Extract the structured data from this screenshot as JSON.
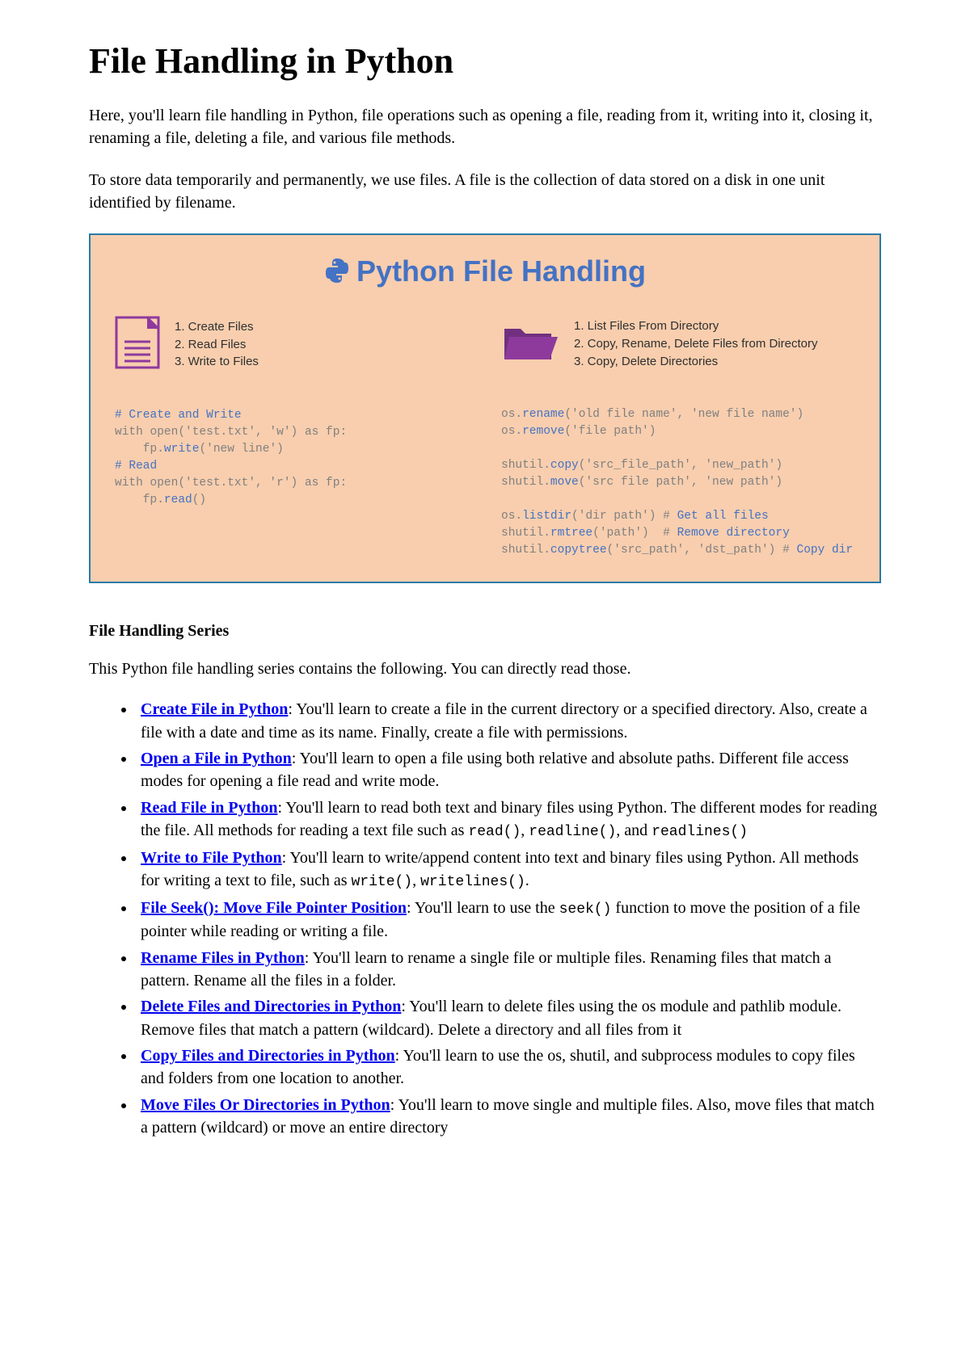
{
  "title": "File Handling in Python",
  "intro": [
    "Here, you'll learn file handling in Python, file operations such as opening a file, reading from it, writing into it, closing it, renaming a file, deleting a file, and various file methods.",
    "To store data temporarily and permanently, we use files. A file is the collection of data stored on a disk in one unit identified by filename."
  ],
  "infographic": {
    "title": "Python File Handling",
    "border_color": "#2a7aa8",
    "background_color": "#f8ceae",
    "title_color": "#4472c4",
    "icon_color": "#8e3a9d",
    "code_gray": "#808080",
    "code_highlight": "#4472c4",
    "left": {
      "bullets": [
        "1. Create Files",
        "2. Read Files",
        "3. Write to Files"
      ],
      "code": [
        {
          "t": "# Create and Write",
          "hl": true
        },
        {
          "t": "with open('test.txt', 'w') as fp:"
        },
        {
          "t": "    fp."
        },
        {
          "t": "write",
          "hl": true,
          "inline": true
        },
        {
          "t": "('new line')",
          "inline": true
        },
        {
          "t": "# Read",
          "hl": true
        },
        {
          "t": "with open('test.txt', 'r') as fp:"
        },
        {
          "t": "    fp."
        },
        {
          "t": "read",
          "hl": true,
          "inline": true
        },
        {
          "t": "()",
          "inline": true
        }
      ]
    },
    "right": {
      "bullets": [
        "1. List Files From Directory",
        "2. Copy, Rename, Delete Files from Directory",
        "3. Copy, Delete Directories"
      ],
      "code": [
        {
          "t": "os."
        },
        {
          "t": "rename",
          "hl": true,
          "inline": true
        },
        {
          "t": "('old file name', 'new file name')",
          "inline": true
        },
        {
          "t": "os."
        },
        {
          "t": "remove",
          "hl": true,
          "inline": true
        },
        {
          "t": "('file path')",
          "inline": true
        },
        {
          "t": ""
        },
        {
          "t": "shutil."
        },
        {
          "t": "copy",
          "hl": true,
          "inline": true
        },
        {
          "t": "('src_file_path', 'new_path')",
          "inline": true
        },
        {
          "t": "shutil."
        },
        {
          "t": "move",
          "hl": true,
          "inline": true
        },
        {
          "t": "('src file path', 'new path')",
          "inline": true
        },
        {
          "t": ""
        },
        {
          "t": "os."
        },
        {
          "t": "listdir",
          "hl": true,
          "inline": true
        },
        {
          "t": "('dir path') # ",
          "inline": true
        },
        {
          "t": "Get all files",
          "hl": true,
          "inline": true
        },
        {
          "t": "shutil."
        },
        {
          "t": "rmtree",
          "hl": true,
          "inline": true
        },
        {
          "t": "('path')  # ",
          "inline": true
        },
        {
          "t": "Remove directory",
          "hl": true,
          "inline": true
        },
        {
          "t": "shutil."
        },
        {
          "t": "copytree",
          "hl": true,
          "inline": true
        },
        {
          "t": "('src_path', 'dst_path') # ",
          "inline": true
        },
        {
          "t": "Copy dir",
          "hl": true,
          "inline": true
        }
      ]
    }
  },
  "series": {
    "heading": "File Handling Series",
    "intro": "This Python file handling series contains the following. You can directly read those.",
    "items": [
      {
        "link": "Create File in Python",
        "desc": ": You'll learn to create a file in the current directory or a specified directory. Also, create a file with a date and time as its name. Finally, create a file with permissions."
      },
      {
        "link": "Open a File in Python",
        "desc": ": You'll learn to open a file using both relative and absolute paths. Different file access modes for opening a file read and write mode."
      },
      {
        "link": "Read File in Python",
        "desc": ": You'll learn to read both text and binary files using Python. The different modes for reading the file. All methods for reading a text file such as ",
        "code": [
          "read()",
          ", ",
          "readline()",
          ", and ",
          "readlines()"
        ]
      },
      {
        "link": "Write to File Python",
        "desc": ": You'll learn to write/append content into text and binary files using Python. All methods for writing a text to file, such as ",
        "code": [
          "write()",
          ", ",
          "writelines()",
          "."
        ]
      },
      {
        "link": "File Seek(): Move File Pointer Position",
        "desc": ": You'll learn to use the ",
        "code": [
          "seek()"
        ],
        "desc2": " function to move the position of a file pointer while reading or writing a file."
      },
      {
        "link": "Rename Files in Python",
        "desc": ": You'll learn to rename a single file or multiple files. Renaming files that match a pattern. Rename all the files in a folder."
      },
      {
        "link": "Delete Files and Directories in Python",
        "desc": ": You'll learn to delete files using the os module and pathlib module. Remove files that match a pattern (wildcard). Delete a directory and all files from it"
      },
      {
        "link": "Copy Files and Directories in Python",
        "desc": ": You'll learn to use the os, shutil, and subprocess modules to copy files and folders from one location to another."
      },
      {
        "link": "Move Files Or Directories in Python",
        "desc": ": You'll learn to move single and multiple files. Also, move files that match a pattern (wildcard) or move an entire directory"
      }
    ]
  }
}
